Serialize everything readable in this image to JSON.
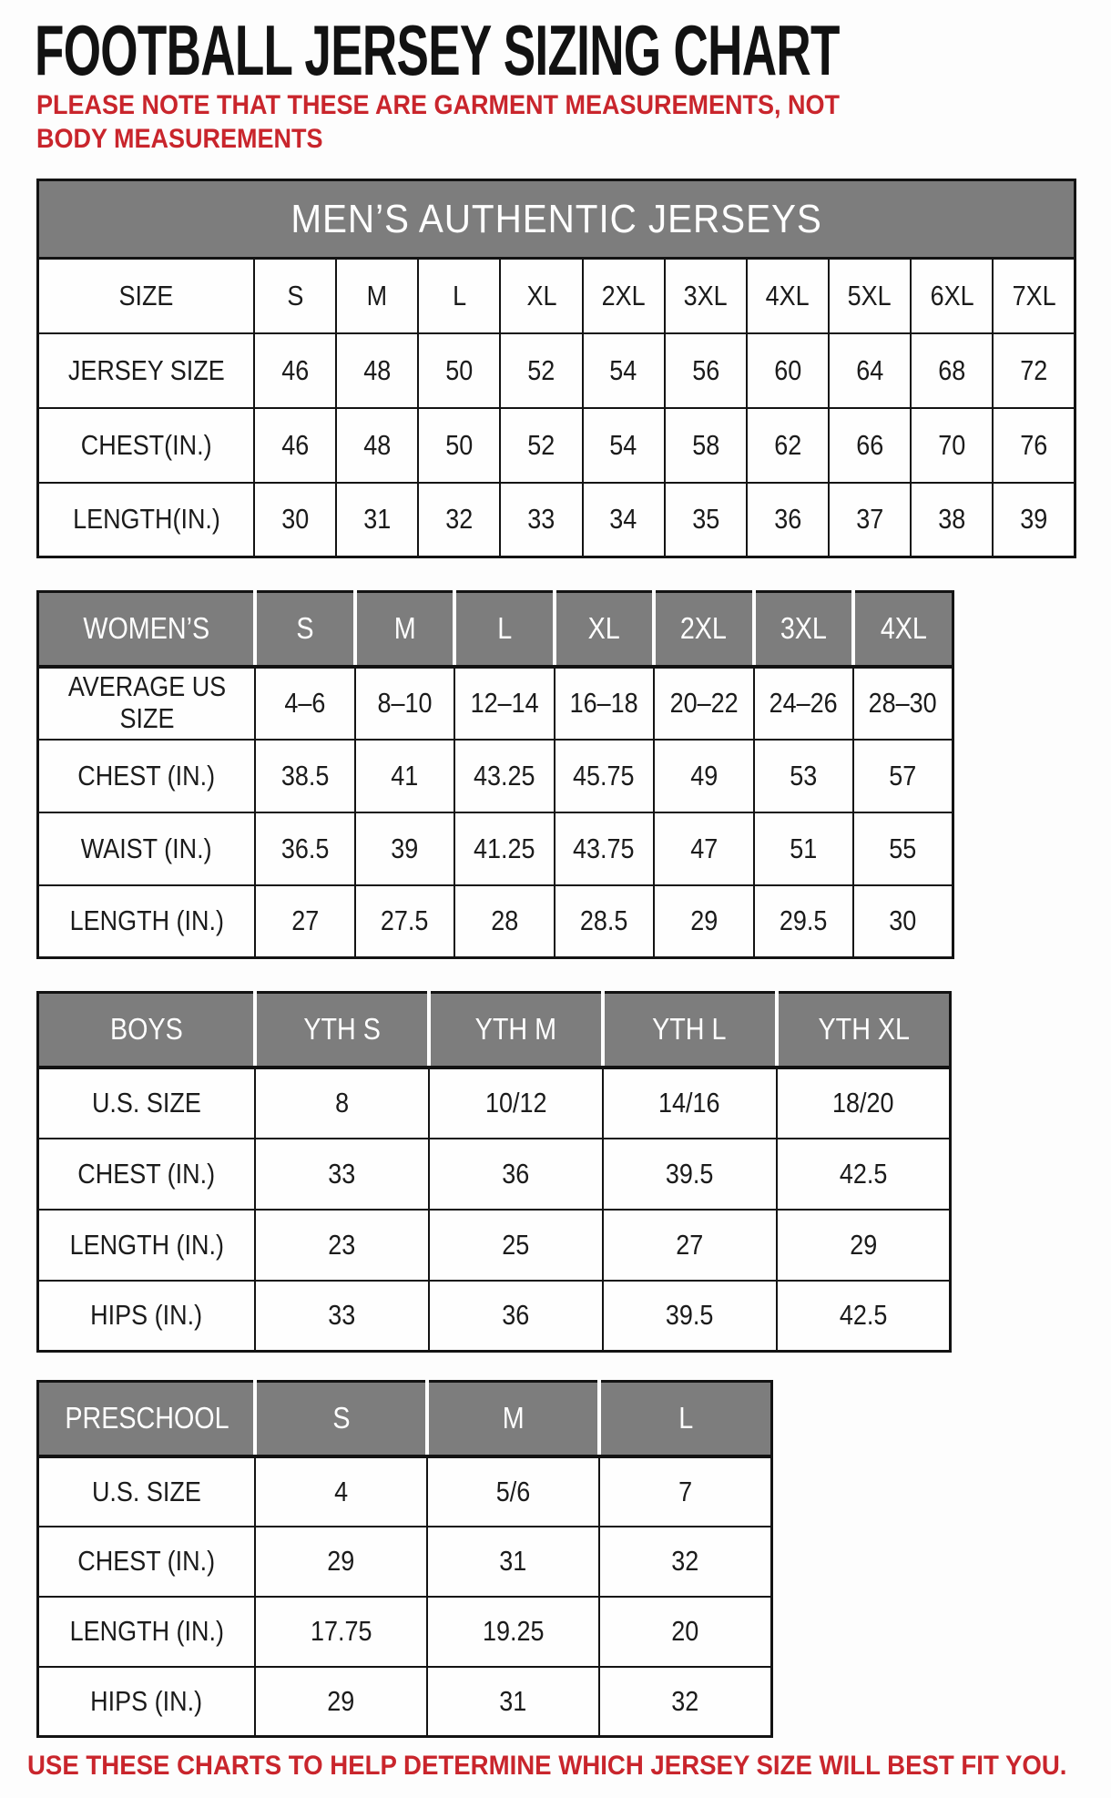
{
  "page": {
    "title": "FOOTBALL JERSEY SIZING CHART",
    "note": "PLEASE NOTE THAT THESE ARE GARMENT MEASUREMENTS, NOT BODY MEASUREMENTS",
    "footer": "USE THESE CHARTS TO HELP DETERMINE WHICH JERSEY SIZE WILL BEST FIT YOU."
  },
  "colors": {
    "accent_red": "#C9252C",
    "header_gray": "#7D7D7D",
    "border_black": "#131313",
    "header_divider_white": "#FFFFFF"
  },
  "tables": {
    "mens": {
      "band_title": "MEN’S AUTHENTIC JERSEYS",
      "rows": [
        {
          "label": "SIZE",
          "values": [
            "S",
            "M",
            "L",
            "XL",
            "2XL",
            "3XL",
            "4XL",
            "5XL",
            "6XL",
            "7XL"
          ]
        },
        {
          "label": "JERSEY SIZE",
          "values": [
            "46",
            "48",
            "50",
            "52",
            "54",
            "56",
            "60",
            "64",
            "68",
            "72"
          ]
        },
        {
          "label": "CHEST(IN.)",
          "values": [
            "46",
            "48",
            "50",
            "52",
            "54",
            "58",
            "62",
            "66",
            "70",
            "76"
          ]
        },
        {
          "label": "LENGTH(IN.)",
          "values": [
            "30",
            "31",
            "32",
            "33",
            "34",
            "35",
            "36",
            "37",
            "38",
            "39"
          ]
        }
      ]
    },
    "womens": {
      "header": {
        "label": "WOMEN’S",
        "values": [
          "S",
          "M",
          "L",
          "XL",
          "2XL",
          "3XL",
          "4XL"
        ]
      },
      "rows": [
        {
          "label": "AVERAGE US SIZE",
          "values": [
            "4–6",
            "8–10",
            "12–14",
            "16–18",
            "20–22",
            "24–26",
            "28–30"
          ]
        },
        {
          "label": "CHEST (IN.)",
          "values": [
            "38.5",
            "41",
            "43.25",
            "45.75",
            "49",
            "53",
            "57"
          ]
        },
        {
          "label": "WAIST (IN.)",
          "values": [
            "36.5",
            "39",
            "41.25",
            "43.75",
            "47",
            "51",
            "55"
          ]
        },
        {
          "label": "LENGTH (IN.)",
          "values": [
            "27",
            "27.5",
            "28",
            "28.5",
            "29",
            "29.5",
            "30"
          ]
        }
      ]
    },
    "boys": {
      "header": {
        "label": "BOYS",
        "values": [
          "YTH S",
          "YTH M",
          "YTH L",
          "YTH XL"
        ]
      },
      "rows": [
        {
          "label": "U.S. SIZE",
          "values": [
            "8",
            "10/12",
            "14/16",
            "18/20"
          ]
        },
        {
          "label": "CHEST (IN.)",
          "values": [
            "33",
            "36",
            "39.5",
            "42.5"
          ]
        },
        {
          "label": "LENGTH (IN.)",
          "values": [
            "23",
            "25",
            "27",
            "29"
          ]
        },
        {
          "label": "HIPS (IN.)",
          "values": [
            "33",
            "36",
            "39.5",
            "42.5"
          ]
        }
      ]
    },
    "preschool": {
      "header": {
        "label": "PRESCHOOL",
        "values": [
          "S",
          "M",
          "L"
        ]
      },
      "rows": [
        {
          "label": "U.S. SIZE",
          "values": [
            "4",
            "5/6",
            "7"
          ]
        },
        {
          "label": "CHEST (IN.)",
          "values": [
            "29",
            "31",
            "32"
          ]
        },
        {
          "label": "LENGTH (IN.)",
          "values": [
            "17.75",
            "19.25",
            "20"
          ]
        },
        {
          "label": "HIPS (IN.)",
          "values": [
            "29",
            "31",
            "32"
          ]
        }
      ]
    }
  }
}
